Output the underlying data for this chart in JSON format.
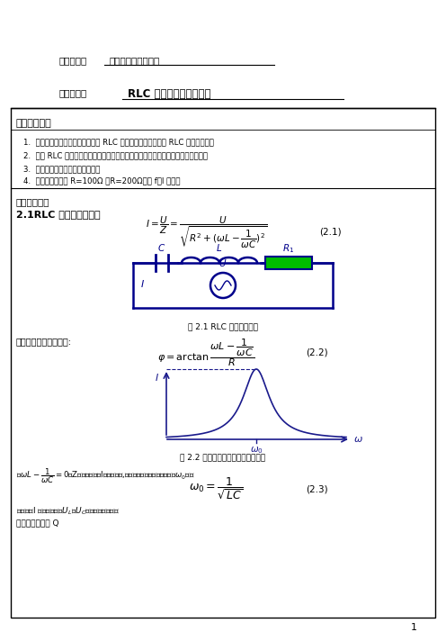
{
  "title_course_label": "课程名称：",
  "title_course_value": "大学物理实验（二）",
  "title_exp_label": "实验名称：",
  "title_exp_value": "RLC 电路谐振特性的研究",
  "section1_title": "一、实验目的",
  "item1": "1.  研究交流电路的谐振现象，认识 RLC 电路的谐振特性；了解 RLC 的选频特性。",
  "item2": "2.  学习 RLC 电路谐振曲线的测绘方法和谐振频率、通频带、品质因数的测试方法。",
  "item3": "3.  学习交流电路中测电压的方法。",
  "item4": "4.  测绘串联电路在 R=100Ω 、R=200Ω谐振 f－I 曲线。",
  "section2_title": "二、实验原理",
  "subsection_title": "2.1RLC 串联电路的谐振",
  "eq1_label": "(2.1)",
  "eq2_label": "(2.2)",
  "eq3_label": "(2.3)",
  "fig1_caption": "图 2.1 RLC 串联谐振电路",
  "fig2_caption": "图 2.2 电压和电流的频率的关系曲线",
  "phase_text": "电压与电流的位相差为:",
  "omega0_text": "谐振时，I 有一极大值，U_L与U_C相等，且相位相反",
  "define_text": "定义：品质因数 Q",
  "when_line": "当ωL－1/(ωC)＝0，Z有一极小值；I有一极大值,此时的圆频率称为谐振圆频率ω₀，且",
  "page_num": "1",
  "bg_color": "#ffffff",
  "border_color": "#000000",
  "text_color": "#000000",
  "circuit_color": "#00008B",
  "resistor_color": "#00bb00",
  "graph_color": "#1a1a8c"
}
